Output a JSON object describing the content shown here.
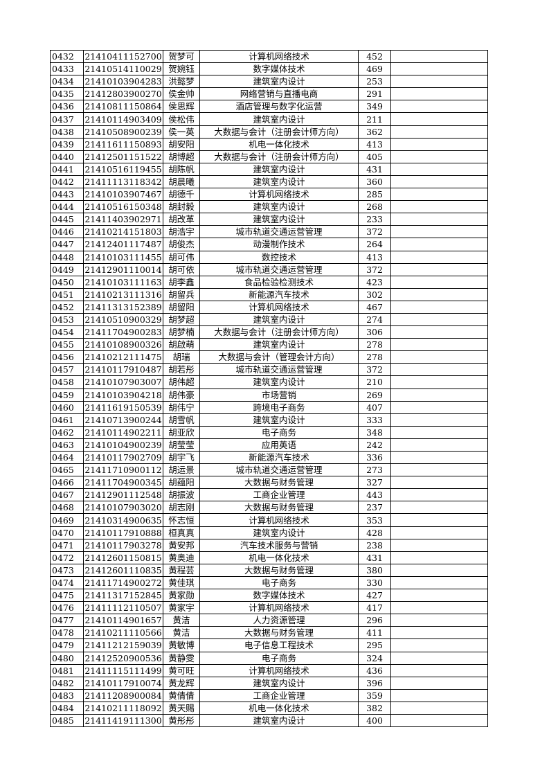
{
  "table": {
    "rows": [
      [
        "0432",
        "21410411152700",
        "贺梦可",
        "计算机网络技术",
        "452",
        ""
      ],
      [
        "0433",
        "21410514110029",
        "贺婉钰",
        "数字媒体技术",
        "469",
        ""
      ],
      [
        "0434",
        "21410103904283",
        "洪懿梦",
        "建筑室内设计",
        "253",
        ""
      ],
      [
        "0435",
        "21412803900270",
        "侯金帅",
        "网络营销与直播电商",
        "291",
        ""
      ],
      [
        "0436",
        "21410811150864",
        "侯思辉",
        "酒店管理与数字化运营",
        "349",
        ""
      ],
      [
        "0437",
        "21410114903409",
        "侯松伟",
        "建筑室内设计",
        "211",
        ""
      ],
      [
        "0438",
        "21410508900239",
        "侯一英",
        "大数据与会计（注册会计师方向）",
        "362",
        ""
      ],
      [
        "0439",
        "21411611150893",
        "胡安阳",
        "机电一体化技术",
        "413",
        ""
      ],
      [
        "0440",
        "21412501151522",
        "胡博超",
        "大数据与会计（注册会计师方向）",
        "405",
        ""
      ],
      [
        "0441",
        "21410516119455",
        "胡陈帆",
        "建筑室内设计",
        "431",
        ""
      ],
      [
        "0442",
        "21411113118342",
        "胡晨曦",
        "建筑室内设计",
        "360",
        ""
      ],
      [
        "0443",
        "21410103907467",
        "胡德千",
        "计算机网络技术",
        "285",
        ""
      ],
      [
        "0444",
        "21410516150348",
        "胡封毅",
        "建筑室内设计",
        "268",
        ""
      ],
      [
        "0445",
        "21411403902971",
        "胡改革",
        "建筑室内设计",
        "233",
        ""
      ],
      [
        "0446",
        "21410214151803",
        "胡浩宇",
        "城市轨道交通运营管理",
        "372",
        ""
      ],
      [
        "0447",
        "21412401117487",
        "胡俊杰",
        "动漫制作技术",
        "264",
        ""
      ],
      [
        "0448",
        "21410103111455",
        "胡可伟",
        "数控技术",
        "413",
        ""
      ],
      [
        "0449",
        "21412901110014",
        "胡可依",
        "城市轨道交通运营管理",
        "372",
        ""
      ],
      [
        "0450",
        "21410103111163",
        "胡李鑫",
        "食品检验检测技术",
        "423",
        ""
      ],
      [
        "0451",
        "21410213111316",
        "胡留兵",
        "新能源汽车技术",
        "302",
        ""
      ],
      [
        "0452",
        "21411313152389",
        "胡留阳",
        "计算机网络技术",
        "467",
        ""
      ],
      [
        "0453",
        "21410510900329",
        "胡梦超",
        "建筑室内设计",
        "274",
        ""
      ],
      [
        "0454",
        "21411704900283",
        "胡梦楠",
        "大数据与会计（注册会计师方向）",
        "306",
        ""
      ],
      [
        "0455",
        "21410108900326",
        "胡啟萌",
        "建筑室内设计",
        "278",
        ""
      ],
      [
        "0456",
        "21410212111475",
        "胡瑞",
        "大数据与会计（管理会计方向）",
        "278",
        ""
      ],
      [
        "0457",
        "21410117910487",
        "胡若彤",
        "城市轨道交通运营管理",
        "372",
        ""
      ],
      [
        "0458",
        "21410107903007",
        "胡伟超",
        "建筑室内设计",
        "210",
        ""
      ],
      [
        "0459",
        "21410103904218",
        "胡伟豪",
        "市场营销",
        "269",
        ""
      ],
      [
        "0460",
        "21411619150539",
        "胡伟宁",
        "跨境电子商务",
        "407",
        ""
      ],
      [
        "0461",
        "21410713900244",
        "胡雪帆",
        "建筑室内设计",
        "333",
        ""
      ],
      [
        "0462",
        "21410114902211",
        "胡亚欣",
        "电子商务",
        "348",
        ""
      ],
      [
        "0463",
        "21410104900239",
        "胡莹莹",
        "应用英语",
        "242",
        ""
      ],
      [
        "0464",
        "21410117902709",
        "胡宇飞",
        "新能源汽车技术",
        "336",
        ""
      ],
      [
        "0465",
        "21411710900112",
        "胡运景",
        "城市轨道交通运营管理",
        "273",
        ""
      ],
      [
        "0466",
        "21411704900345",
        "胡蕴阳",
        "大数据与财务管理",
        "327",
        ""
      ],
      [
        "0467",
        "21412901112548",
        "胡振波",
        "工商企业管理",
        "443",
        ""
      ],
      [
        "0468",
        "21410107903020",
        "胡志刚",
        "大数据与财务管理",
        "237",
        ""
      ],
      [
        "0469",
        "21410314900635",
        "怀志恒",
        "计算机网络技术",
        "353",
        ""
      ],
      [
        "0470",
        "21410117910888",
        "桓真真",
        "建筑室内设计",
        "428",
        ""
      ],
      [
        "0471",
        "21410117903278",
        "黄安邦",
        "汽车技术服务与营销",
        "238",
        ""
      ],
      [
        "0472",
        "21412601150815",
        "黄奥迪",
        "机电一体化技术",
        "431",
        ""
      ],
      [
        "0473",
        "21412601110835",
        "黄程芸",
        "大数据与财务管理",
        "380",
        ""
      ],
      [
        "0474",
        "21411714900272",
        "黄佳琪",
        "电子商务",
        "330",
        ""
      ],
      [
        "0475",
        "21411317152845",
        "黄家勋",
        "数字媒体技术",
        "427",
        ""
      ],
      [
        "0476",
        "21411112110507",
        "黄家宇",
        "计算机网络技术",
        "417",
        ""
      ],
      [
        "0477",
        "21410114901657",
        "黄洁",
        "人力资源管理",
        "296",
        ""
      ],
      [
        "0478",
        "21410211110566",
        "黄洁",
        "大数据与财务管理",
        "411",
        ""
      ],
      [
        "0479",
        "21411212159039",
        "黄敏博",
        "电子信息工程技术",
        "295",
        ""
      ],
      [
        "0480",
        "21412520900536",
        "黄静雯",
        "电子商务",
        "324",
        ""
      ],
      [
        "0481",
        "21411115111499",
        "黄可旺",
        "计算机网络技术",
        "436",
        ""
      ],
      [
        "0482",
        "21410117910074",
        "黄龙辉",
        "建筑室内设计",
        "396",
        ""
      ],
      [
        "0483",
        "21411208900084",
        "黄倩倩",
        "工商企业管理",
        "359",
        ""
      ],
      [
        "0484",
        "21410211118092",
        "黄天赐",
        "机电一体化技术",
        "382",
        ""
      ],
      [
        "0485",
        "21411419111300",
        "黄彤彤",
        "建筑室内设计",
        "400",
        ""
      ]
    ]
  }
}
